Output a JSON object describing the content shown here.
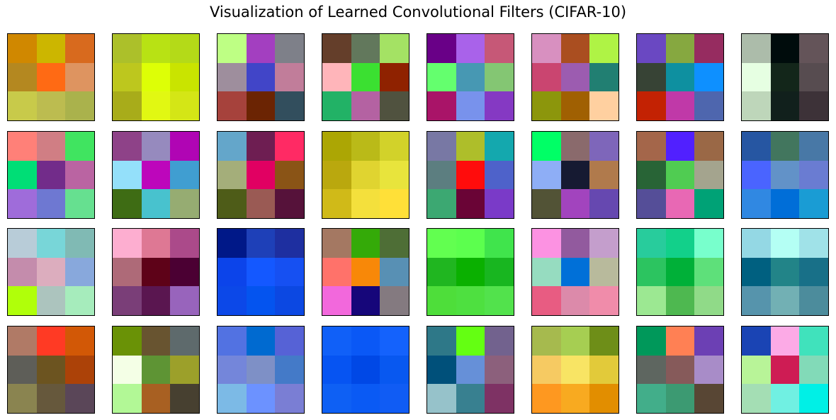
{
  "title": "Visualization of Learned Convolutional Filters (CIFAR-10)",
  "chart_data": {
    "type": "heatmap",
    "title": "Visualization of Learned Convolutional Filters (CIFAR-10)",
    "grid_rows": 4,
    "grid_cols": 8,
    "kernel_size": [
      3,
      3
    ],
    "filters": [
      [
        "#D08800",
        "#CCB600",
        "#D86A1E",
        "#B48820",
        "#FF6A14",
        "#DE9460",
        "#C8CA4A",
        "#BCBC50",
        "#AAB24C"
      ],
      [
        "#ACC02A",
        "#B8E214",
        "#B4DA18",
        "#BDC71E",
        "#DDFF06",
        "#C9E400",
        "#A8AC1A",
        "#E1F812",
        "#D4E616"
      ],
      [
        "#BEFF84",
        "#A33FC0",
        "#7E8089",
        "#9E8E9D",
        "#4145C8",
        "#C17D9A",
        "#A6423C",
        "#6B2403",
        "#324E5D"
      ],
      [
        "#643E2A",
        "#62785C",
        "#A4E264",
        "#FFB5BA",
        "#3BE031",
        "#8F2200",
        "#22B266",
        "#B462A2",
        "#50523F"
      ],
      [
        "#690087",
        "#A962EA",
        "#C65877",
        "#64FF6E",
        "#4798B3",
        "#84C673",
        "#A91468",
        "#7892EC",
        "#8539C3"
      ],
      [
        "#D890C0",
        "#AA4E20",
        "#AFF345",
        "#CA4570",
        "#9C5CB0",
        "#217F72",
        "#8C960C",
        "#A06002",
        "#FFD0A0"
      ],
      [
        "#6A48C2",
        "#86A840",
        "#962C60",
        "#374335",
        "#0E90A0",
        "#0E90FF",
        "#C32203",
        "#C039A8",
        "#4E66AE"
      ],
      [
        "#ACBCAA",
        "#000C0C",
        "#645459",
        "#E6FFE2",
        "#13261A",
        "#574C50",
        "#BED6BA",
        "#11201C",
        "#3D3238"
      ],
      [
        "#FF8078",
        "#D07E84",
        "#40E460",
        "#00DE76",
        "#722C8A",
        "#BA64A2",
        "#9F6CDA",
        "#6E78D2",
        "#66E090"
      ],
      [
        "#8E4288",
        "#968ABE",
        "#B005B4",
        "#94E0FA",
        "#BD06BB",
        "#409ED1",
        "#3E6C14",
        "#48C2CE",
        "#96AC72"
      ],
      [
        "#64A6CA",
        "#6E1E52",
        "#FF2A64",
        "#A4AE7A",
        "#E10062",
        "#8A5416",
        "#4E5C18",
        "#9A5A54",
        "#56123A"
      ],
      [
        "#ACA604",
        "#BABA18",
        "#D2D22A",
        "#BAA80E",
        "#E0D430",
        "#E8E43C",
        "#D0BA18",
        "#F4E03C",
        "#FFE038"
      ],
      [
        "#7878A4",
        "#AEBE2A",
        "#14A8AE",
        "#5C7E80",
        "#FF0C0C",
        "#4E62CA",
        "#3CA872",
        "#6A0436",
        "#7A3AC8"
      ],
      [
        "#00FF66",
        "#8A6A6C",
        "#7E66BA",
        "#8EAEF6",
        "#161A32",
        "#B07A4C",
        "#525336",
        "#A244BE",
        "#6648B0"
      ],
      [
        "#A4664A",
        "#5120FF",
        "#9A6846",
        "#286436",
        "#50CC52",
        "#A4A48E",
        "#554E98",
        "#E868B4",
        "#00A276"
      ],
      [
        "#2656A2",
        "#42765E",
        "#4878A6",
        "#4A64FF",
        "#6292C8",
        "#6A7CD2",
        "#3088E2",
        "#006ED8",
        "#1A9CD4"
      ],
      [
        "#B8CCD8",
        "#78D6D8",
        "#80BAB4",
        "#C48CAC",
        "#DCADBE",
        "#88A8DC",
        "#B0FF0A",
        "#ACC4BE",
        "#A6ECBC"
      ],
      [
        "#FDAED0",
        "#DE7894",
        "#AB4A8A",
        "#AE6A78",
        "#5E0218",
        "#4B0033",
        "#7A3E78",
        "#5A1650",
        "#9864BC"
      ],
      [
        "#001888",
        "#1E40B8",
        "#1E2FA0",
        "#0C44EA",
        "#1458FF",
        "#1650F2",
        "#0C48E8",
        "#0454EF",
        "#0C48E2"
      ],
      [
        "#A47862",
        "#34AA08",
        "#4E6E36",
        "#FF726A",
        "#F88808",
        "#5890B4",
        "#F268DC",
        "#16067A",
        "#847A80"
      ],
      [
        "#62FF50",
        "#5CFF4E",
        "#40E44C",
        "#20B620",
        "#0AB000",
        "#18B620",
        "#4EDE3A",
        "#4EE040",
        "#52E24C"
      ],
      [
        "#FC92E2",
        "#925A9E",
        "#C49ECC",
        "#96DCC0",
        "#0070D8",
        "#B8BA9C",
        "#E85C82",
        "#DC8AAA",
        "#F08CAA"
      ],
      [
        "#28CC9C",
        "#12D08A",
        "#78FFCC",
        "#2CC460",
        "#00B038",
        "#5EE07A",
        "#9CE892",
        "#4EB850",
        "#90DA88"
      ],
      [
        "#94D8E4",
        "#B4FFF4",
        "#A0E2E8",
        "#006080",
        "#228488",
        "#187088",
        "#5694AC",
        "#72B0B4",
        "#4C8C9C"
      ],
      [
        "#B07A66",
        "#FF3A24",
        "#D25806",
        "#5E5E58",
        "#6C5420",
        "#AC4208",
        "#8A8450",
        "#66583C",
        "#5A4658"
      ],
      [
        "#6A9206",
        "#685430",
        "#5E6A6C",
        "#F4FFE6",
        "#5E9434",
        "#9CA02A",
        "#B2F896",
        "#A86022",
        "#474030"
      ],
      [
        "#5272E2",
        "#006AD0",
        "#5662D6",
        "#7486DA",
        "#7E90C6",
        "#447AC8",
        "#7CBAE6",
        "#6C92FF",
        "#7A7ED4"
      ],
      [
        "#1060F8",
        "#0A58F6",
        "#1462FC",
        "#0654F2",
        "#0048E6",
        "#0858F0",
        "#0E60F4",
        "#0A5AF4",
        "#105CF4"
      ],
      [
        "#2E7888",
        "#64FF12",
        "#72628E",
        "#00507A",
        "#6690D8",
        "#8C607C",
        "#96C2CA",
        "#388090",
        "#7E3264"
      ],
      [
        "#A6BA4E",
        "#A6CE52",
        "#6E8E18",
        "#F6CA62",
        "#F8E464",
        "#E2CA3A",
        "#FE9820",
        "#F8AA20",
        "#E28E00"
      ],
      [
        "#00985A",
        "#FF8054",
        "#6C40B4",
        "#5E6660",
        "#865A5A",
        "#A88CC8",
        "#42AE8A",
        "#3C9A72",
        "#584634"
      ],
      [
        "#1A44B4",
        "#FCAAE6",
        "#40E2BC",
        "#B8F498",
        "#CE1C54",
        "#82DAB8",
        "#A4DEB4",
        "#70F0E2",
        "#00F0E6"
      ]
    ]
  }
}
